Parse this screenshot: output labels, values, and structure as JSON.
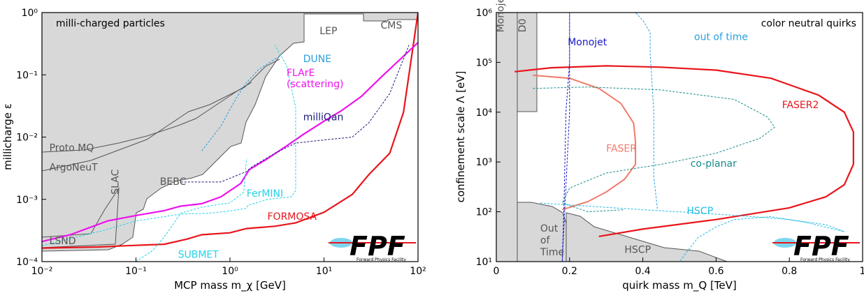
{
  "chart_data": [
    {
      "type": "line",
      "title": "milli-charged particles",
      "xlabel": "MCP mass m_χ [GeV]",
      "ylabel": "millicharge ε",
      "xscale": "log",
      "yscale": "log",
      "xlim": [
        0.01,
        100
      ],
      "ylim": [
        0.0001,
        1
      ],
      "x_ticks": [
        "10⁻²",
        "10⁻¹",
        "10⁰",
        "10¹",
        "10²"
      ],
      "y_ticks": [
        "10⁻⁴",
        "10⁻³",
        "10⁻²",
        "10⁻¹",
        "10⁰"
      ],
      "colors": {
        "excluded": "#d8d8d8",
        "formosa": "#e8151b",
        "flare": "#ee10ee",
        "milliqan": "#1a1a7a",
        "dune": "#2a9fe0",
        "fermini": "#22d2e8",
        "submet": "#22d2e8"
      },
      "excluded_regions": [
        {
          "label": "LSND",
          "pos": [
            0.012,
            0.00019
          ]
        },
        {
          "label": "SLAC",
          "pos": [
            0.065,
            0.0012
          ]
        },
        {
          "label": "BEBC",
          "pos": [
            0.18,
            0.0017
          ]
        },
        {
          "label": "ArgoNeuT",
          "pos": [
            0.012,
            0.0029
          ]
        },
        {
          "label": "Proto MQ",
          "pos": [
            0.012,
            0.006
          ]
        },
        {
          "label": "LEP",
          "pos": [
            9,
            0.45
          ]
        },
        {
          "label": "CMS",
          "pos": [
            40,
            0.55
          ]
        }
      ],
      "series": [
        {
          "name": "FORMOSA",
          "label_pos": [
            2.5,
            0.00047
          ],
          "x": [
            0.01,
            0.04,
            0.08,
            0.2,
            0.35,
            0.5,
            1.0,
            1.5,
            3,
            5,
            10,
            20,
            30,
            50,
            70,
            100
          ],
          "y": [
            0.000165,
            0.000172,
            0.00018,
            0.00019,
            0.00023,
            0.00027,
            0.00029,
            0.00034,
            0.00037,
            0.00042,
            0.00062,
            0.0012,
            0.0025,
            0.0055,
            0.025,
            1.0
          ]
        },
        {
          "name": "FLArE\n(scattering)",
          "label_pos": [
            4,
            0.095
          ],
          "x": [
            0.01,
            0.02,
            0.05,
            0.1,
            0.2,
            0.3,
            0.5,
            0.8,
            1.3,
            1.6,
            2.5,
            4,
            6,
            10,
            15,
            25,
            40,
            60,
            100
          ],
          "y": [
            0.00021,
            0.00027,
            0.00045,
            0.00055,
            0.00066,
            0.00078,
            0.00085,
            0.0011,
            0.0018,
            0.003,
            0.0045,
            0.0072,
            0.011,
            0.018,
            0.026,
            0.045,
            0.09,
            0.16,
            0.33
          ]
        },
        {
          "name": "milliQan",
          "label_pos": [
            6,
            0.0185
          ],
          "x": [
            0.3,
            0.8,
            1.5,
            1.7,
            3,
            5,
            10,
            20,
            30,
            50,
            80
          ],
          "y": [
            0.0019,
            0.0019,
            0.0028,
            0.0033,
            0.0055,
            0.008,
            0.009,
            0.01,
            0.017,
            0.05,
            0.3
          ]
        },
        {
          "name": "DUNE",
          "label_pos": [
            6,
            0.16
          ],
          "x": [
            0.5,
            0.8,
            1.0,
            1.2,
            1.5,
            2.0,
            3.0,
            3.5
          ],
          "y": [
            0.006,
            0.015,
            0.028,
            0.045,
            0.075,
            0.12,
            0.18,
            0.2
          ]
        },
        {
          "name": "FerMINI",
          "label_pos": [
            1.5,
            0.0011
          ],
          "x": [
            0.01,
            0.05,
            0.1,
            0.3,
            0.6,
            1.0,
            1.5,
            1.55,
            2.5,
            4.5,
            5.0,
            5.0,
            4.0,
            3.0
          ],
          "y": [
            0.00018,
            0.00033,
            0.00045,
            0.00058,
            0.0006,
            0.00065,
            0.00072,
            0.0008,
            0.001,
            0.0011,
            0.0014,
            0.03,
            0.14,
            0.3
          ]
        },
        {
          "name": "SUBMET",
          "label_pos": [
            0.28,
            0.000115
          ],
          "x": [
            0.1,
            0.15,
            0.2,
            0.3,
            0.5,
            1.0,
            1.4,
            1.5
          ],
          "y": [
            0.0001,
            0.00015,
            0.00025,
            0.0006,
            0.00075,
            0.00088,
            0.0013,
            0.0045
          ]
        }
      ]
    },
    {
      "type": "line",
      "title": "color neutral quirks",
      "xlabel": "quirk mass m_Q [TeV]",
      "ylabel": "confinement scale Λ [eV]",
      "xscale": "linear",
      "yscale": "log",
      "xlim": [
        0,
        1
      ],
      "ylim": [
        10,
        1000000
      ],
      "x_ticks": [
        "0",
        "0.2",
        "0.4",
        "0.6",
        "0.8",
        "1"
      ],
      "y_ticks": [
        "10¹",
        "10²",
        "10³",
        "10⁴",
        "10⁵",
        "10⁶"
      ],
      "colors": {
        "excluded": "#d8d8d8",
        "faser2": "#e8151b",
        "faser": "#f07a6a",
        "monojet": "#1818c8",
        "out_of_time": "#2a9fe0",
        "co_planar": "#1a8a8a",
        "hscp": "#22bbe8"
      },
      "excluded_regions": [
        {
          "label": "Monojet",
          "pos": [
            0.02,
            400000
          ]
        },
        {
          "label": "D0",
          "pos": [
            0.08,
            400000
          ]
        },
        {
          "label": "Out\nof\nTime",
          "pos": [
            0.12,
            40
          ]
        },
        {
          "label": "HSCP",
          "pos": [
            0.35,
            15
          ]
        }
      ],
      "series": [
        {
          "name": "FASER2",
          "label_pos": [
            0.78,
            12000
          ],
          "x": [
            0.05,
            0.15,
            0.3,
            0.45,
            0.6,
            0.75,
            0.88,
            0.95,
            0.975,
            0.975,
            0.95,
            0.9,
            0.8,
            0.6,
            0.4,
            0.28
          ],
          "y": [
            65000,
            78000,
            85000,
            80000,
            70000,
            48000,
            22000,
            10000,
            4000,
            900,
            350,
            200,
            120,
            70,
            45,
            32
          ]
        },
        {
          "name": "FASER",
          "label_pos": [
            0.3,
            1600
          ],
          "x": [
            0.1,
            0.2,
            0.28,
            0.34,
            0.375,
            0.38,
            0.38,
            0.35,
            0.3,
            0.25,
            0.18
          ],
          "y": [
            55000,
            48000,
            30000,
            15000,
            6000,
            2500,
            900,
            450,
            250,
            160,
            110
          ]
        },
        {
          "name": "Monojet",
          "label_pos": [
            0.195,
            220000
          ],
          "x": [
            0.18,
            0.185,
            0.19,
            0.2,
            0.2,
            0.2,
            0.18
          ],
          "y": [
            10,
            150,
            10000,
            100000,
            1000000,
            10000,
            10
          ]
        },
        {
          "name": "out of time",
          "label_pos": [
            0.54,
            280000
          ],
          "x": [
            0.2,
            0.38,
            0.4,
            0.42,
            0.42,
            0.43,
            0.43,
            0.44
          ],
          "y": [
            1000000,
            1000000,
            700000,
            400000,
            150000,
            10000,
            500,
            110
          ]
        },
        {
          "name": "co-planar",
          "label_pos": [
            0.53,
            800
          ],
          "x": [
            0.1,
            0.25,
            0.45,
            0.65,
            0.74,
            0.76,
            0.72,
            0.6,
            0.45,
            0.3,
            0.2,
            0.18,
            0.25,
            0.35
          ],
          "y": [
            30000,
            32000,
            28000,
            18000,
            8000,
            5000,
            3000,
            1500,
            900,
            600,
            300,
            150,
            100,
            110
          ]
        },
        {
          "name": "HSCP",
          "label_pos": [
            0.52,
            90
          ],
          "x": [
            0.12,
            0.25,
            0.4,
            0.55,
            0.7,
            0.8,
            0.9,
            0.95,
            0.85,
            0.75,
            0.65,
            0.6,
            0.55,
            0.5
          ],
          "y": [
            150,
            130,
            110,
            95,
            80,
            70,
            55,
            40,
            60,
            80,
            70,
            50,
            30,
            10
          ]
        }
      ]
    }
  ],
  "logo": {
    "text": "FPF",
    "subtext": "Forward Physics Facility"
  }
}
